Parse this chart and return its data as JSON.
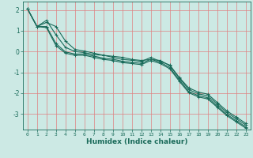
{
  "xlabel": "Humidex (Indice chaleur)",
  "ylabel": "",
  "background_color": "#cce9e4",
  "grid_color": "#e08080",
  "line_color": "#1a6b5a",
  "xlim": [
    -0.5,
    23.5
  ],
  "ylim": [
    -3.75,
    2.4
  ],
  "xticks": [
    0,
    1,
    2,
    3,
    4,
    5,
    6,
    7,
    8,
    9,
    10,
    11,
    12,
    13,
    14,
    15,
    16,
    17,
    18,
    19,
    20,
    21,
    22,
    23
  ],
  "yticks": [
    -3,
    -2,
    -1,
    0,
    1,
    2
  ],
  "series": [
    [
      2.05,
      1.2,
      1.5,
      0.8,
      0.2,
      0.0,
      -0.05,
      -0.15,
      -0.18,
      -0.28,
      -0.38,
      -0.42,
      -0.48,
      -0.28,
      -0.48,
      -0.65,
      -1.25,
      -1.75,
      -1.95,
      -2.05,
      -2.45,
      -2.85,
      -3.15,
      -3.45
    ],
    [
      2.05,
      1.2,
      1.4,
      1.2,
      0.5,
      0.1,
      0.02,
      -0.08,
      -0.18,
      -0.23,
      -0.28,
      -0.38,
      -0.43,
      -0.38,
      -0.43,
      -0.68,
      -1.28,
      -1.83,
      -2.03,
      -2.13,
      -2.53,
      -2.93,
      -3.23,
      -3.53
    ],
    [
      2.05,
      1.2,
      1.2,
      0.38,
      -0.02,
      -0.12,
      -0.12,
      -0.22,
      -0.32,
      -0.37,
      -0.47,
      -0.52,
      -0.57,
      -0.37,
      -0.52,
      -0.77,
      -1.37,
      -1.92,
      -2.12,
      -2.22,
      -2.62,
      -3.02,
      -3.32,
      -3.62
    ],
    [
      2.05,
      1.2,
      1.15,
      0.28,
      -0.08,
      -0.18,
      -0.18,
      -0.28,
      -0.38,
      -0.43,
      -0.53,
      -0.58,
      -0.63,
      -0.43,
      -0.58,
      -0.83,
      -1.43,
      -1.98,
      -2.18,
      -2.28,
      -2.68,
      -3.08,
      -3.38,
      -3.68
    ]
  ],
  "marker": "+",
  "markersize": 3,
  "linewidth": 0.8
}
